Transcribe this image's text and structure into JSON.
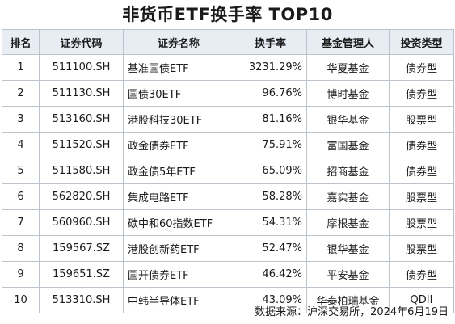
{
  "title": "非货币ETF换手率 TOP10",
  "table": {
    "headers": [
      "排名",
      "证券代码",
      "证券名称",
      "换手率",
      "基金管理人",
      "投资类型"
    ],
    "rows": [
      {
        "rank": "1",
        "code": "511100.SH",
        "name": "基准国债ETF",
        "turnover": "3231.29%",
        "manager": "华夏基金",
        "type": "债券型"
      },
      {
        "rank": "2",
        "code": "511130.SH",
        "name": "国债30ETF",
        "turnover": "96.76%",
        "manager": "博时基金",
        "type": "债券型"
      },
      {
        "rank": "3",
        "code": "513160.SH",
        "name": "港股科技30ETF",
        "turnover": "81.16%",
        "manager": "银华基金",
        "type": "股票型"
      },
      {
        "rank": "4",
        "code": "511520.SH",
        "name": "政金债券ETF",
        "turnover": "75.91%",
        "manager": "富国基金",
        "type": "债券型"
      },
      {
        "rank": "5",
        "code": "511580.SH",
        "name": "政金债5年ETF",
        "turnover": "65.09%",
        "manager": "招商基金",
        "type": "债券型"
      },
      {
        "rank": "6",
        "code": "562820.SH",
        "name": "集成电路ETF",
        "turnover": "58.28%",
        "manager": "嘉实基金",
        "type": "股票型"
      },
      {
        "rank": "7",
        "code": "560960.SH",
        "name": "碳中和60指数ETF",
        "turnover": "54.31%",
        "manager": "摩根基金",
        "type": "股票型"
      },
      {
        "rank": "8",
        "code": "159567.SZ",
        "name": "港股创新药ETF",
        "turnover": "52.47%",
        "manager": "银华基金",
        "type": "股票型"
      },
      {
        "rank": "9",
        "code": "159651.SZ",
        "name": "国开债券ETF",
        "turnover": "46.42%",
        "manager": "平安基金",
        "type": "债券型"
      },
      {
        "rank": "10",
        "code": "513310.SH",
        "name": "中韩半导体ETF",
        "turnover": "43.09%",
        "manager": "华泰柏瑞基金",
        "type": "QDII"
      }
    ]
  },
  "source": "数据来源：沪深交易所，2024年6月19日",
  "colors": {
    "header_bg": "#e7edf3",
    "border": "#bcc3cc",
    "text": "#1a1a1a"
  }
}
